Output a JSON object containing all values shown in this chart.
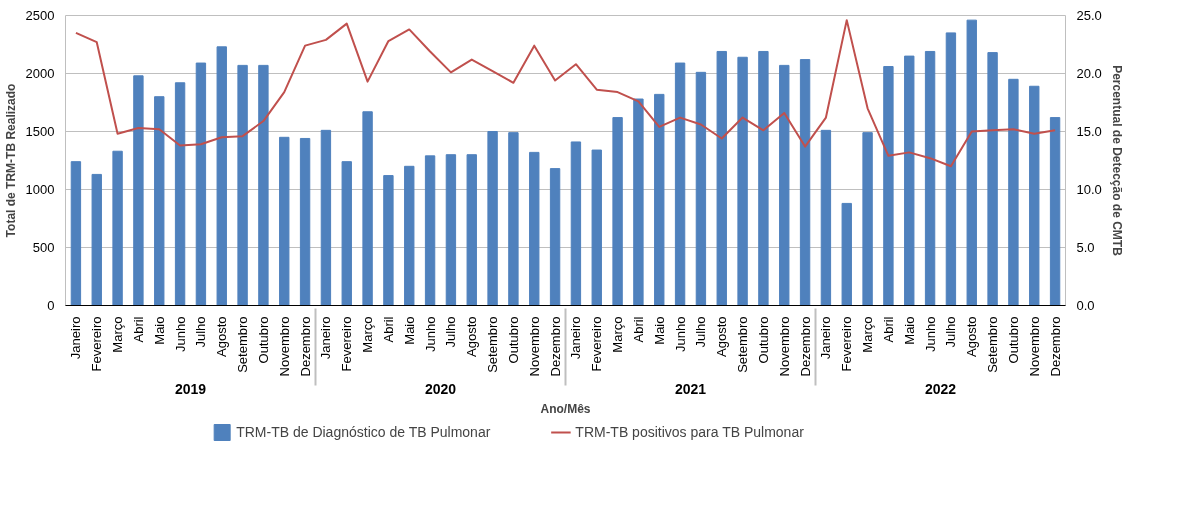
{
  "chart_data": {
    "type": "bar",
    "xlabel": "Ano/Mês",
    "ylabel": "Total de TRM-TB Realizado",
    "y2label": "Percentual de Detecção de CMTB",
    "categories": [
      "Janeiro",
      "Fevereiro",
      "Março",
      "Abril",
      "Maio",
      "Junho",
      "Julho",
      "Agosto",
      "Setembro",
      "Outubro",
      "Novembro",
      "Dezembro",
      "Janeiro",
      "Fevereiro",
      "Março",
      "Abril",
      "Maio",
      "Junho",
      "Julho",
      "Agosto",
      "Setembro",
      "Outubro",
      "Novembro",
      "Dezembro",
      "Janeiro",
      "Fevereiro",
      "Março",
      "Abril",
      "Maio",
      "Junho",
      "Julho",
      "Agosto",
      "Setembro",
      "Outubro",
      "Novembro",
      "Dezembro",
      "Janeiro",
      "Fevereiro",
      "Março",
      "Abril",
      "Maio",
      "Junho",
      "Julho",
      "Agosto",
      "Setembro",
      "Outubro",
      "Novembro",
      "Dezembro"
    ],
    "annotations": [
      "2019",
      "2020",
      "2021",
      "2022"
    ],
    "series": [
      {
        "name": "TRM-TB de Diagnóstico de TB Pulmonar",
        "color": "#4f81bd",
        "values": [
          1240,
          1130,
          1330,
          1980,
          1800,
          1920,
          2090,
          2230,
          2070,
          2070,
          1450,
          1440,
          1510,
          1240,
          1670,
          1120,
          1200,
          1290,
          1300,
          1300,
          1500,
          1490,
          1320,
          1180,
          1410,
          1340,
          1620,
          1780,
          1820,
          2090,
          2010,
          2190,
          2140,
          2190,
          2070,
          2120,
          1510,
          880,
          1490,
          2060,
          2150,
          2190,
          2350,
          2460,
          2180,
          1950,
          1890,
          1620
        ]
      },
      {
        "name": "TRM-TB positivos para TB Pulmonar",
        "type": "line",
        "axis": "y2",
        "color": "#c0504d",
        "values": [
          23.5,
          22.7,
          14.8,
          15.3,
          15.2,
          13.8,
          13.9,
          14.5,
          14.6,
          15.9,
          18.4,
          22.4,
          22.9,
          24.3,
          19.3,
          22.8,
          23.8,
          21.9,
          20.1,
          21.2,
          20.2,
          19.2,
          22.4,
          19.4,
          20.8,
          18.6,
          18.4,
          17.6,
          15.4,
          16.2,
          15.6,
          14.4,
          16.2,
          15.1,
          16.6,
          13.7,
          16.2,
          24.6,
          17.0,
          12.9,
          13.2,
          12.7,
          12.0,
          15.0,
          15.1,
          15.2,
          14.8,
          15.1
        ]
      }
    ],
    "ylim": [
      0,
      2500
    ],
    "yticks": [
      0,
      500,
      1000,
      1500,
      2000,
      2500
    ],
    "y2lim": [
      0,
      25
    ],
    "y2ticks": [
      {
        "value": 0,
        "label": "0.0"
      },
      {
        "value": 5,
        "label": "5.0"
      },
      {
        "value": 10,
        "label": "10.0"
      },
      {
        "value": 15,
        "label": "15.0"
      },
      {
        "value": 20,
        "label": "20.0"
      },
      {
        "value": 25,
        "label": "25.0"
      }
    ],
    "grid": "y",
    "legend": "bottom"
  }
}
